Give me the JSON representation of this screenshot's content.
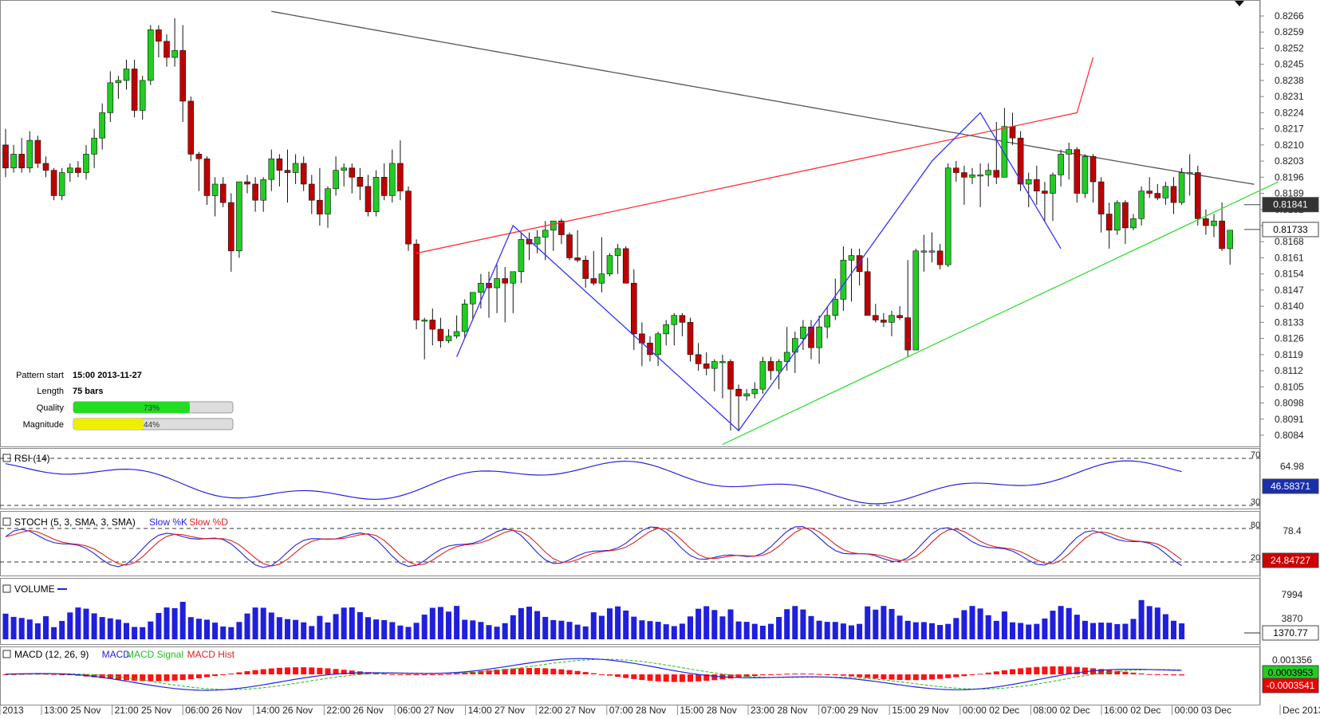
{
  "price_axis": {
    "ticks": [
      "0.8266",
      "0.8259",
      "0.8252",
      "0.8245",
      "0.8238",
      "0.8231",
      "0.8224",
      "0.8217",
      "0.8210",
      "0.8203",
      "0.8196",
      "0.8189",
      "0.8182",
      "0.8175",
      "0.8168",
      "0.8161",
      "0.8154",
      "0.8147",
      "0.8140",
      "0.8133",
      "0.8126",
      "0.8119",
      "0.8112",
      "0.8105",
      "0.8098",
      "0.8091",
      "0.8084"
    ],
    "current_label": "0.81733",
    "ma_label": "0.81841"
  },
  "time_axis": {
    "labels": [
      "2013",
      "13:00 25 Nov",
      "21:00 25 Nov",
      "06:00 26 Nov",
      "14:00 26 Nov",
      "22:00 26 Nov",
      "06:00 27 Nov",
      "14:00 27 Nov",
      "22:00 27 Nov",
      "07:00 28 Nov",
      "15:00 28 Nov",
      "23:00 28 Nov",
      "07:00 29 Nov",
      "15:00 29 Nov",
      "00:00 02 Dec",
      "08:00 02 Dec",
      "16:00 02 Dec",
      "00:00 03 Dec",
      "Dec 2013"
    ]
  },
  "pattern_info": {
    "start_label": "Pattern start",
    "start_value": "15:00 2013-11-27",
    "length_label": "Length",
    "length_value": "75 bars",
    "quality_label": "Quality",
    "quality_value": "73%",
    "quality_fraction": 0.73,
    "magnitude_label": "Magnitude",
    "magnitude_value": "44%",
    "magnitude_fraction": 0.44
  },
  "indicators": {
    "rsi": {
      "title": "RSI (14)",
      "level_high": "70",
      "level_mid": "64.98",
      "level_low": "30",
      "current": "46.58371"
    },
    "stoch": {
      "title": "STOCH (5, 3, SMA, 3, SMA)",
      "k_label": "Slow %K",
      "d_label": "Slow %D",
      "level_high": "80",
      "level_mid": "78.4",
      "level_low": "20",
      "current": "24.84727"
    },
    "volume": {
      "title": "VOLUME",
      "tick_high": "7994",
      "tick_low": "3870",
      "current": "1370.77"
    },
    "macd": {
      "title": "MACD (12, 26, 9)",
      "macd_label": "MACD",
      "signal_label": "MACD Signal",
      "hist_label": "MACD Hist",
      "tick_high": "0.001356",
      "value_macd": "0.0003953",
      "value_hist": "-0.0003541"
    }
  },
  "colors": {
    "bull": "#22cc22",
    "bear": "#c00000",
    "ma": "#555555",
    "resistance": "#ff3333",
    "support": "#33dd33",
    "zigzag": "#3333ff"
  },
  "chart_data": {
    "type": "candlestick",
    "timeframe_note": "hourly bars",
    "ohlc": [
      [
        0.821,
        0.8217,
        0.8196,
        0.82
      ],
      [
        0.82,
        0.821,
        0.8198,
        0.8206
      ],
      [
        0.8206,
        0.8213,
        0.8198,
        0.82
      ],
      [
        0.82,
        0.8216,
        0.8198,
        0.8212
      ],
      [
        0.8212,
        0.8214,
        0.82,
        0.8202
      ],
      [
        0.8202,
        0.8205,
        0.8196,
        0.8199
      ],
      [
        0.8199,
        0.82,
        0.8186,
        0.8188
      ],
      [
        0.8188,
        0.82,
        0.8186,
        0.8198
      ],
      [
        0.8198,
        0.8202,
        0.8194,
        0.82
      ],
      [
        0.82,
        0.8203,
        0.8196,
        0.8198
      ],
      [
        0.8198,
        0.821,
        0.8195,
        0.8206
      ],
      [
        0.8206,
        0.8217,
        0.82,
        0.8213
      ],
      [
        0.8213,
        0.8228,
        0.8208,
        0.8224
      ],
      [
        0.8224,
        0.8242,
        0.822,
        0.8237
      ],
      [
        0.8237,
        0.824,
        0.823,
        0.8238
      ],
      [
        0.8238,
        0.8247,
        0.8234,
        0.8243
      ],
      [
        0.8243,
        0.8247,
        0.8222,
        0.8225
      ],
      [
        0.8225,
        0.824,
        0.8221,
        0.8238
      ],
      [
        0.8238,
        0.8262,
        0.8236,
        0.826
      ],
      [
        0.826,
        0.8262,
        0.8248,
        0.8255
      ],
      [
        0.8255,
        0.8258,
        0.8244,
        0.8248
      ],
      [
        0.8248,
        0.8265,
        0.8244,
        0.8251
      ],
      [
        0.8251,
        0.8262,
        0.822,
        0.8229
      ],
      [
        0.8229,
        0.8231,
        0.8203,
        0.8206
      ],
      [
        0.8206,
        0.8207,
        0.819,
        0.8204
      ],
      [
        0.8204,
        0.8205,
        0.8184,
        0.8188
      ],
      [
        0.8188,
        0.8196,
        0.8179,
        0.8193
      ],
      [
        0.8193,
        0.8196,
        0.8183,
        0.8185
      ],
      [
        0.8185,
        0.8189,
        0.8155,
        0.8164
      ],
      [
        0.8164,
        0.8193,
        0.8161,
        0.8194
      ],
      [
        0.8194,
        0.8197,
        0.8189,
        0.8193
      ],
      [
        0.8193,
        0.8196,
        0.8181,
        0.8186
      ],
      [
        0.8186,
        0.8196,
        0.8181,
        0.8195
      ],
      [
        0.8195,
        0.8208,
        0.819,
        0.8204
      ],
      [
        0.8204,
        0.8206,
        0.8192,
        0.8199
      ],
      [
        0.8199,
        0.8208,
        0.8185,
        0.8198
      ],
      [
        0.8198,
        0.8206,
        0.8193,
        0.8202
      ],
      [
        0.8202,
        0.8205,
        0.819,
        0.8193
      ],
      [
        0.8193,
        0.8197,
        0.818,
        0.8186
      ],
      [
        0.8186,
        0.82,
        0.8175,
        0.818
      ],
      [
        0.818,
        0.8192,
        0.8174,
        0.8191
      ],
      [
        0.8191,
        0.8205,
        0.8188,
        0.8199
      ],
      [
        0.8199,
        0.8202,
        0.8192,
        0.82
      ],
      [
        0.82,
        0.8202,
        0.8189,
        0.8196
      ],
      [
        0.8196,
        0.82,
        0.8186,
        0.8192
      ],
      [
        0.8192,
        0.8197,
        0.8179,
        0.8181
      ],
      [
        0.8181,
        0.8199,
        0.8179,
        0.8196
      ],
      [
        0.8196,
        0.8202,
        0.8186,
        0.8188
      ],
      [
        0.8188,
        0.8208,
        0.8185,
        0.8202
      ],
      [
        0.8202,
        0.8212,
        0.8186,
        0.819
      ],
      [
        0.819,
        0.8192,
        0.8164,
        0.8167
      ],
      [
        0.8167,
        0.8169,
        0.813,
        0.8134
      ],
      [
        0.8134,
        0.8135,
        0.8117,
        0.8134
      ],
      [
        0.8134,
        0.8139,
        0.8123,
        0.813
      ],
      [
        0.813,
        0.8135,
        0.8122,
        0.8125
      ],
      [
        0.8125,
        0.813,
        0.8124,
        0.8127
      ],
      [
        0.8127,
        0.8136,
        0.8126,
        0.8129
      ],
      [
        0.8129,
        0.8143,
        0.8126,
        0.8141
      ],
      [
        0.8141,
        0.8146,
        0.8134,
        0.8146
      ],
      [
        0.8146,
        0.8154,
        0.8139,
        0.815
      ],
      [
        0.815,
        0.8155,
        0.8135,
        0.8148
      ],
      [
        0.8148,
        0.8158,
        0.8137,
        0.8152
      ],
      [
        0.8152,
        0.8157,
        0.8133,
        0.815
      ],
      [
        0.815,
        0.8155,
        0.8137,
        0.8155
      ],
      [
        0.8155,
        0.8172,
        0.815,
        0.8169
      ],
      [
        0.8169,
        0.8172,
        0.816,
        0.8167
      ],
      [
        0.8167,
        0.8173,
        0.8163,
        0.817
      ],
      [
        0.817,
        0.8177,
        0.816,
        0.8173
      ],
      [
        0.8173,
        0.8177,
        0.8164,
        0.8177
      ],
      [
        0.8177,
        0.8178,
        0.8167,
        0.8171
      ],
      [
        0.8171,
        0.8172,
        0.816,
        0.8161
      ],
      [
        0.8161,
        0.8173,
        0.8159,
        0.816
      ],
      [
        0.816,
        0.8162,
        0.8148,
        0.8152
      ],
      [
        0.8152,
        0.8164,
        0.8149,
        0.815
      ],
      [
        0.815,
        0.817,
        0.8146,
        0.8154
      ],
      [
        0.8154,
        0.8163,
        0.8153,
        0.8162
      ],
      [
        0.8162,
        0.8167,
        0.8154,
        0.8165
      ],
      [
        0.8165,
        0.8166,
        0.815,
        0.815
      ],
      [
        0.815,
        0.8156,
        0.8121,
        0.8128
      ],
      [
        0.8128,
        0.8133,
        0.8114,
        0.8124
      ],
      [
        0.8124,
        0.8127,
        0.8116,
        0.8119
      ],
      [
        0.8119,
        0.8129,
        0.8114,
        0.8128
      ],
      [
        0.8128,
        0.8134,
        0.8123,
        0.8132
      ],
      [
        0.8132,
        0.8137,
        0.8123,
        0.8136
      ],
      [
        0.8136,
        0.8137,
        0.8127,
        0.8133
      ],
      [
        0.8133,
        0.8135,
        0.8116,
        0.8119
      ],
      [
        0.8119,
        0.8124,
        0.8112,
        0.8115
      ],
      [
        0.8115,
        0.812,
        0.811,
        0.8113
      ],
      [
        0.8113,
        0.8117,
        0.8103,
        0.8116
      ],
      [
        0.8116,
        0.8119,
        0.81,
        0.8116
      ],
      [
        0.8116,
        0.8117,
        0.8086,
        0.8104
      ],
      [
        0.8104,
        0.8106,
        0.8086,
        0.8101
      ],
      [
        0.8101,
        0.8104,
        0.8099,
        0.8102
      ],
      [
        0.8102,
        0.8107,
        0.81,
        0.8104
      ],
      [
        0.8104,
        0.8118,
        0.8102,
        0.8116
      ],
      [
        0.8116,
        0.8118,
        0.8108,
        0.8112
      ],
      [
        0.8112,
        0.8117,
        0.8104,
        0.8116
      ],
      [
        0.8116,
        0.8131,
        0.8112,
        0.812
      ],
      [
        0.812,
        0.8129,
        0.8111,
        0.8126
      ],
      [
        0.8126,
        0.8134,
        0.8121,
        0.8131
      ],
      [
        0.8131,
        0.8134,
        0.8117,
        0.8122
      ],
      [
        0.8122,
        0.8136,
        0.8115,
        0.8131
      ],
      [
        0.8131,
        0.814,
        0.8126,
        0.8136
      ],
      [
        0.8136,
        0.8152,
        0.8134,
        0.8143
      ],
      [
        0.8143,
        0.8166,
        0.8138,
        0.816
      ],
      [
        0.816,
        0.8165,
        0.8142,
        0.8162
      ],
      [
        0.8162,
        0.8165,
        0.8149,
        0.8155
      ],
      [
        0.8155,
        0.8161,
        0.8136,
        0.8136
      ],
      [
        0.8136,
        0.8141,
        0.8133,
        0.8134
      ],
      [
        0.8134,
        0.8137,
        0.8131,
        0.8133
      ],
      [
        0.8133,
        0.8138,
        0.8127,
        0.8136
      ],
      [
        0.8136,
        0.814,
        0.8134,
        0.8135
      ],
      [
        0.8135,
        0.816,
        0.8118,
        0.8121
      ],
      [
        0.8121,
        0.8165,
        0.8121,
        0.8164
      ],
      [
        0.8164,
        0.8171,
        0.8155,
        0.8164
      ],
      [
        0.8164,
        0.8172,
        0.8159,
        0.8164
      ],
      [
        0.8164,
        0.8167,
        0.8156,
        0.8158
      ],
      [
        0.8158,
        0.8202,
        0.8157,
        0.82
      ],
      [
        0.82,
        0.8203,
        0.8194,
        0.8198
      ],
      [
        0.8198,
        0.8201,
        0.8184,
        0.8196
      ],
      [
        0.8196,
        0.82,
        0.8193,
        0.8197
      ],
      [
        0.8197,
        0.8202,
        0.8183,
        0.8197
      ],
      [
        0.8197,
        0.8202,
        0.8192,
        0.8199
      ],
      [
        0.8199,
        0.822,
        0.8193,
        0.8196
      ],
      [
        0.8196,
        0.8226,
        0.8196,
        0.8218
      ],
      [
        0.8218,
        0.8224,
        0.821,
        0.8213
      ],
      [
        0.8213,
        0.8216,
        0.819,
        0.8193
      ],
      [
        0.8193,
        0.8198,
        0.8183,
        0.8195
      ],
      [
        0.8195,
        0.8201,
        0.8184,
        0.819
      ],
      [
        0.819,
        0.8194,
        0.8177,
        0.8189
      ],
      [
        0.8189,
        0.8198,
        0.8177,
        0.8197
      ],
      [
        0.8197,
        0.8208,
        0.8192,
        0.8206
      ],
      [
        0.8206,
        0.8211,
        0.8195,
        0.8208
      ],
      [
        0.8208,
        0.8209,
        0.8185,
        0.8189
      ],
      [
        0.8189,
        0.8206,
        0.8187,
        0.8205
      ],
      [
        0.8205,
        0.8206,
        0.8185,
        0.8194
      ],
      [
        0.8194,
        0.8196,
        0.8172,
        0.818
      ],
      [
        0.818,
        0.8185,
        0.8165,
        0.8173
      ],
      [
        0.8173,
        0.8186,
        0.8171,
        0.8185
      ],
      [
        0.8185,
        0.8186,
        0.8167,
        0.8174
      ],
      [
        0.8174,
        0.818,
        0.8173,
        0.8178
      ],
      [
        0.8178,
        0.8192,
        0.8175,
        0.819
      ],
      [
        0.819,
        0.8196,
        0.8187,
        0.8189
      ],
      [
        0.8189,
        0.8193,
        0.8186,
        0.8187
      ],
      [
        0.8187,
        0.8194,
        0.8184,
        0.8192
      ],
      [
        0.8192,
        0.8196,
        0.818,
        0.8185
      ],
      [
        0.8185,
        0.82,
        0.8184,
        0.8198
      ],
      [
        0.8198,
        0.8206,
        0.8188,
        0.8198
      ],
      [
        0.8198,
        0.8201,
        0.8175,
        0.8178
      ],
      [
        0.8178,
        0.8182,
        0.8171,
        0.8175
      ],
      [
        0.8175,
        0.818,
        0.817,
        0.8177
      ],
      [
        0.8177,
        0.8185,
        0.8164,
        0.8165
      ],
      [
        0.8165,
        0.8173,
        0.8158,
        0.8173
      ]
    ],
    "moving_average_label": "0.81841",
    "last_close": 0.81733,
    "pattern_lines": {
      "resistance": [
        [
          51,
          0.8163
        ],
        [
          133,
          0.8224
        ],
        [
          135,
          0.8248
        ]
      ],
      "support": [
        [
          81,
          0.808
        ],
        [
          131,
          0.8196
        ]
      ],
      "zigzag": [
        [
          51,
          0.8118
        ],
        [
          63,
          0.8175
        ],
        [
          83,
          0.8086
        ],
        [
          105,
          0.8203
        ],
        [
          111,
          0.8224
        ],
        [
          120,
          0.8165
        ]
      ]
    }
  }
}
